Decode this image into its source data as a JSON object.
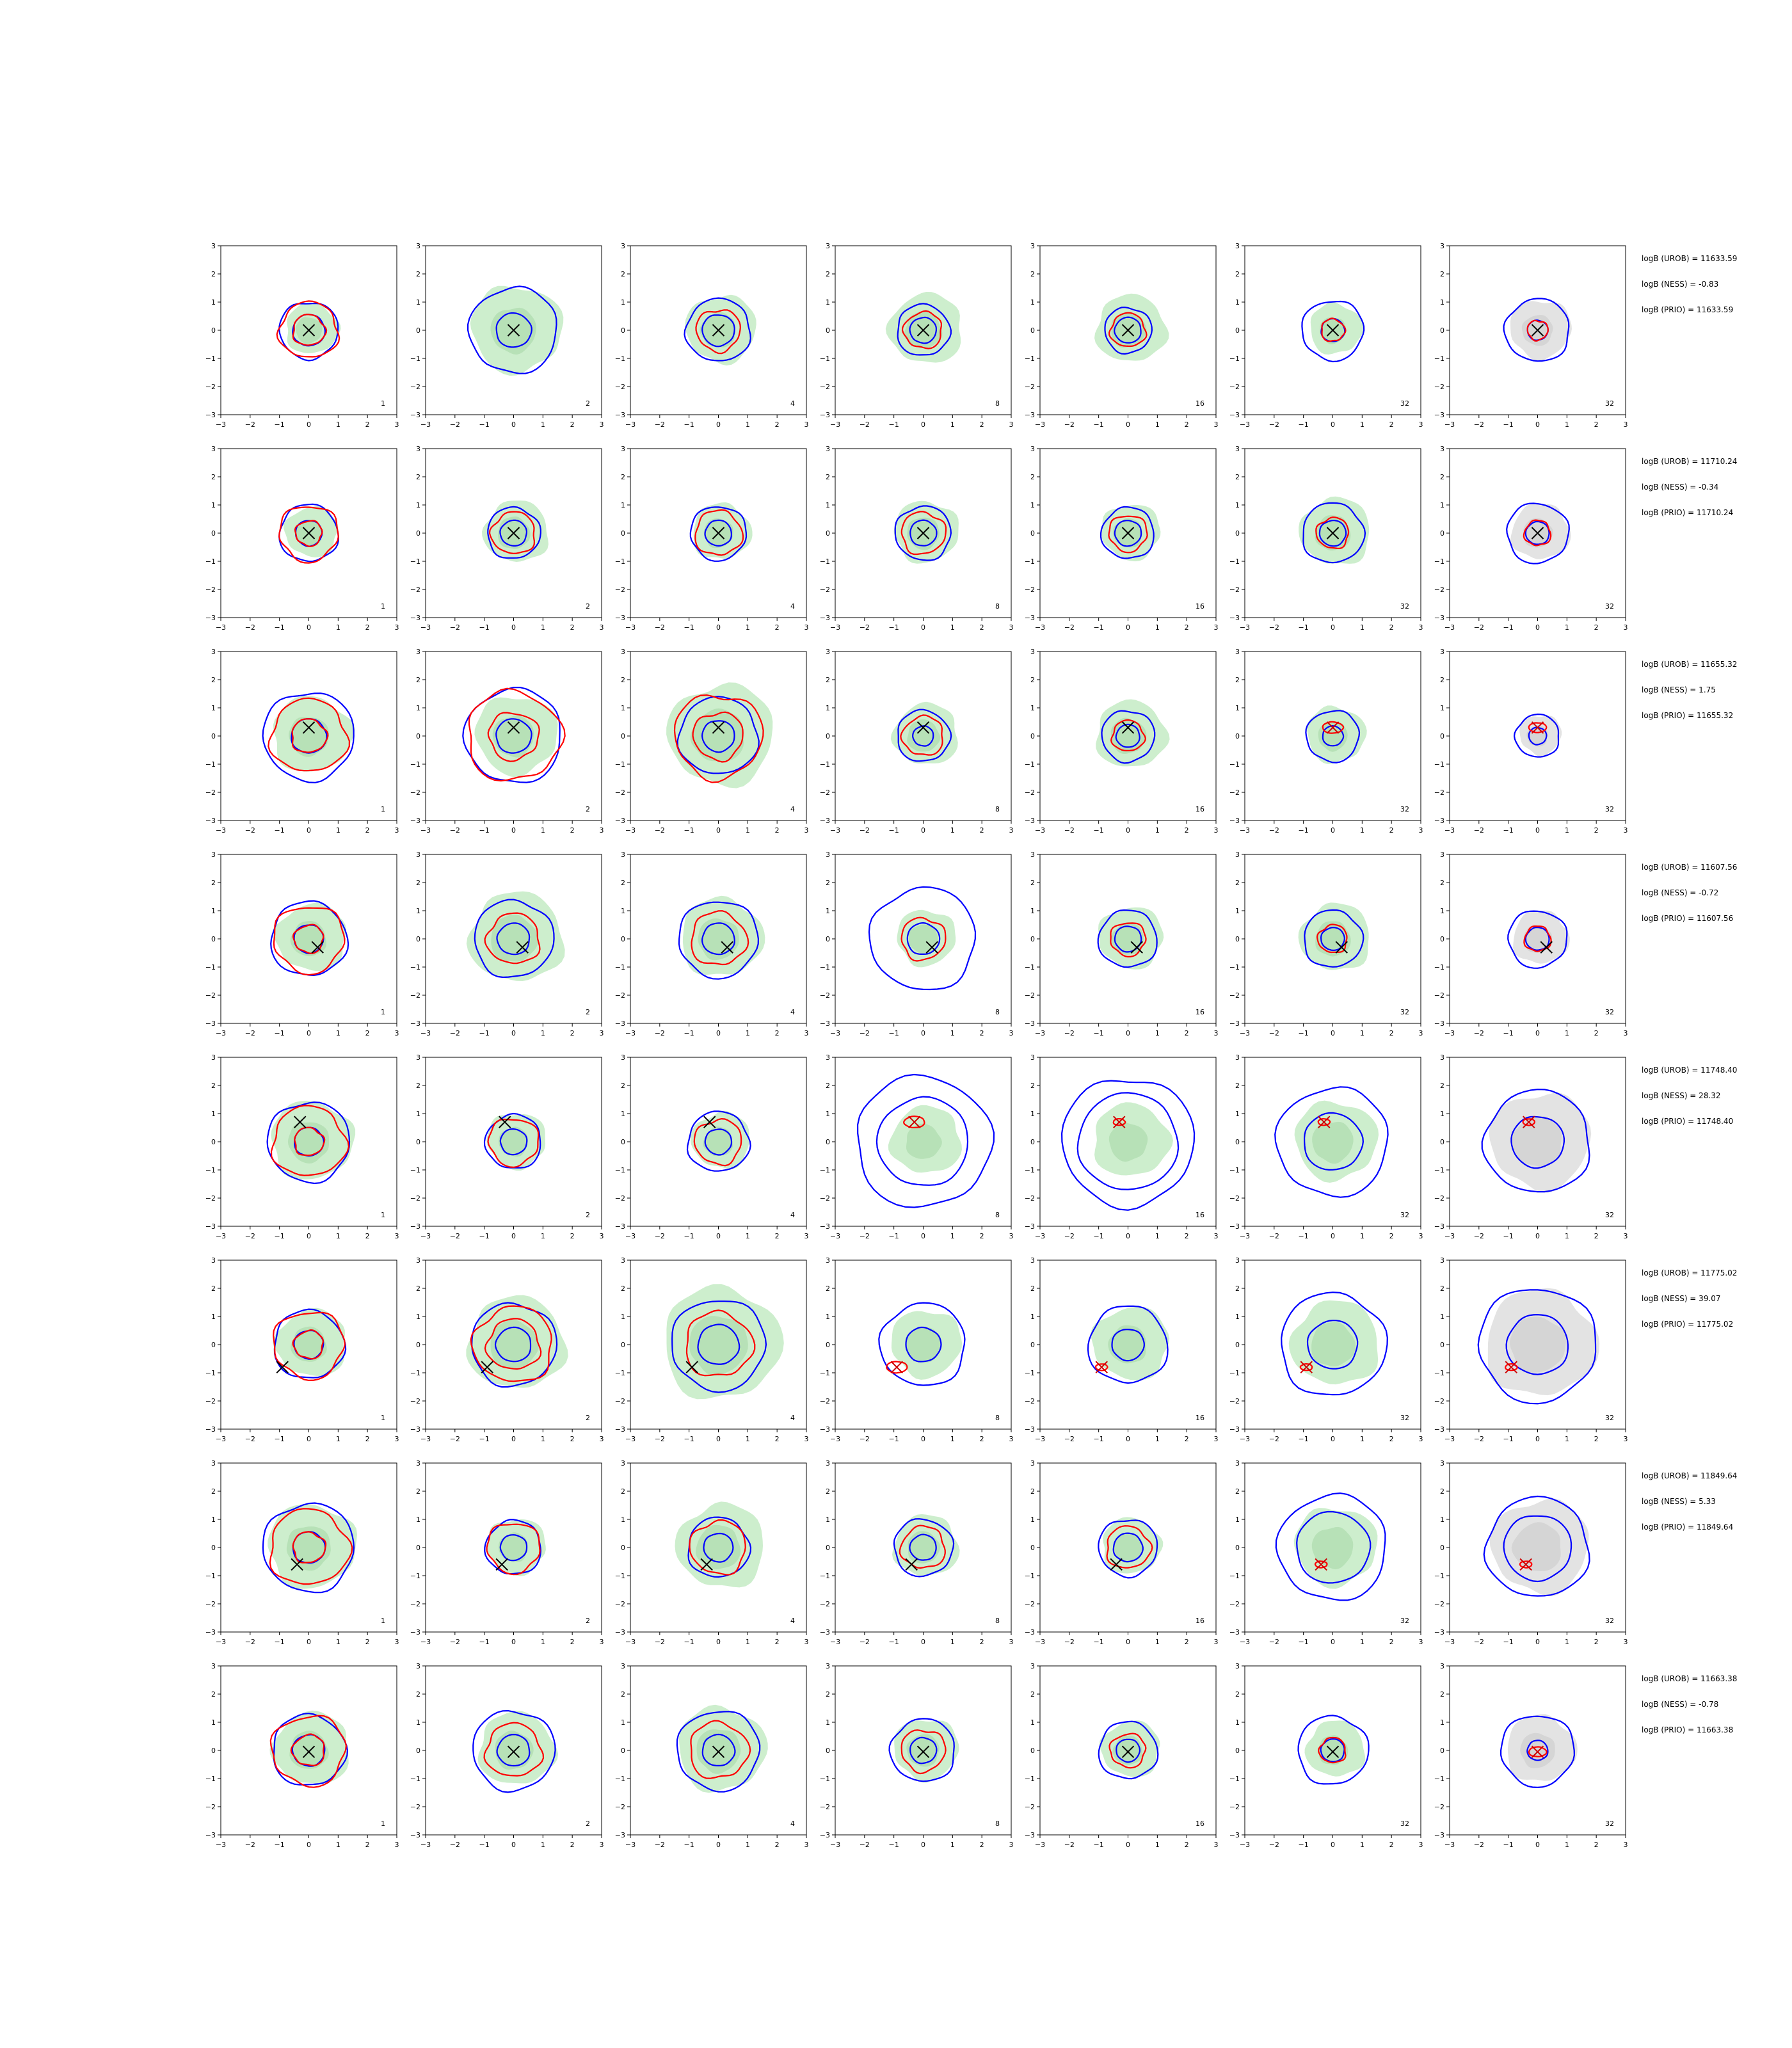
{
  "chart_data": {
    "type": "contour",
    "grid": {
      "rows": 8,
      "cols": 7
    },
    "xlim": [
      -3,
      3
    ],
    "ylim": [
      -3,
      3
    ],
    "xticks": [
      "−3",
      "−2",
      "−1",
      "0",
      "1",
      "2",
      "3"
    ],
    "yticks": [
      "−3",
      "−2",
      "−1",
      "0",
      "1",
      "2",
      "3"
    ],
    "column_labels": [
      "1",
      "2",
      "4",
      "8",
      "16",
      "32",
      "32"
    ],
    "colors": {
      "fill_green": "#cdeecd",
      "fill_green_inner": "#a9d9a9",
      "fill_grey": "#e3e3e3",
      "fill_grey_inner": "#cccccc",
      "blue": "#0000ff",
      "red": "#ff0000",
      "marker": "#000000",
      "marker_red": "#cc0000"
    },
    "rows": [
      {
        "annotations": [
          "logB (UROB) = 11633.59",
          "logB (NESS) = -0.83",
          "logB (PRIO) = 11633.59"
        ],
        "marker": [
          0.0,
          0.0
        ],
        "panels": [
          {
            "blue": [
              0.55,
              1.0
            ],
            "red": [
              0.55,
              1.0
            ],
            "green": 0.9
          },
          {
            "blue": [
              0.6,
              1.5
            ],
            "red": [],
            "green": 1.55
          },
          {
            "blue": [
              0.55,
              1.1
            ],
            "red": [
              0.75
            ],
            "green": 1.2
          },
          {
            "blue": [
              0.45,
              0.9
            ],
            "red": [
              0.65
            ],
            "green": 1.25
          },
          {
            "blue": [
              0.45,
              0.8
            ],
            "red": [
              0.6
            ],
            "green": 1.2
          },
          {
            "blue": [
              0.4,
              1.05
            ],
            "red": [
              0.4
            ],
            "green": 0.9
          },
          {
            "blue": [
              0.35,
              1.1
            ],
            "red": [
              0.35
            ],
            "green": 0.0
          }
        ]
      },
      {
        "annotations": [
          "logB (UROB) = 11710.24",
          "logB (NESS) = -0.34",
          "logB (PRIO) = 11710.24"
        ],
        "marker": [
          0.0,
          0.0
        ],
        "panels": [
          {
            "blue": [
              0.45,
              1.0
            ],
            "red": [
              0.45,
              1.0
            ],
            "green": 0.9
          },
          {
            "blue": [
              0.45,
              0.9
            ],
            "red": [
              0.75
            ],
            "green": 1.1
          },
          {
            "blue": [
              0.45,
              0.95
            ],
            "red": [
              0.8
            ],
            "green": 1.0
          },
          {
            "blue": [
              0.45,
              0.95
            ],
            "red": [
              0.75
            ],
            "green": 1.1
          },
          {
            "blue": [
              0.45,
              0.9
            ],
            "red": [
              0.65
            ],
            "green": 1.0
          },
          {
            "blue": [
              0.45,
              1.05
            ],
            "red": [
              0.55
            ],
            "green": 1.2
          },
          {
            "blue": [
              0.4,
              1.05
            ],
            "red": [
              0.45
            ],
            "green": 0.0
          }
        ]
      },
      {
        "annotations": [
          "logB (UROB) = 11655.32",
          "logB (NESS) = 1.75",
          "logB (PRIO) = 11655.32"
        ],
        "marker": [
          0.0,
          0.3
        ],
        "panels": [
          {
            "blue": [
              0.6,
              1.55
            ],
            "red": [
              0.6,
              1.3
            ],
            "green": 1.35
          },
          {
            "blue": [
              0.6,
              1.65
            ],
            "red": [
              0.85,
              1.6
            ],
            "green": 1.4
          },
          {
            "blue": [
              0.55,
              1.35
            ],
            "red": [
              0.85,
              1.5
            ],
            "green": 1.8
          },
          {
            "blue": [
              0.35,
              0.9
            ],
            "red": [
              0.7
            ],
            "green": 1.1
          },
          {
            "blue": [
              0.4,
              0.9
            ],
            "red": [
              0.55
            ],
            "green": 1.2
          },
          {
            "blue": [
              0.35,
              0.9
            ],
            "red": [
              0.35
            ],
            "green": 1.0
          },
          {
            "blue": [
              0.3,
              0.75
            ],
            "red": [
              0.3
            ],
            "green": 0.0
          }
        ]
      },
      {
        "annotations": [
          "logB (UROB) = 11607.56",
          "logB (NESS) = -0.72",
          "logB (PRIO) = 11607.56"
        ],
        "marker": [
          0.3,
          -0.3
        ],
        "panels": [
          {
            "blue": [
              0.5,
              1.3
            ],
            "red": [
              0.5,
              1.2
            ],
            "green": 1.2
          },
          {
            "blue": [
              0.55,
              1.35
            ],
            "red": [
              0.9
            ],
            "green": 1.6
          },
          {
            "blue": [
              0.55,
              1.35
            ],
            "red": [
              0.95
            ],
            "green": 1.4
          },
          {
            "blue": [
              0.55,
              1.8
            ],
            "red": [
              0.75
            ],
            "green": 1.0
          },
          {
            "blue": [
              0.45,
              1.0
            ],
            "red": [
              0.6
            ],
            "green": 1.1
          },
          {
            "blue": [
              0.4,
              1.0
            ],
            "red": [
              0.5
            ],
            "green": 1.2
          },
          {
            "blue": [
              0.4,
              1.0
            ],
            "red": [
              0.45
            ],
            "green": 0.0
          }
        ]
      },
      {
        "annotations": [
          "logB (UROB) = 11748.40",
          "logB (NESS) = 28.32",
          "logB (PRIO) = 11748.40"
        ],
        "marker": [
          -0.3,
          0.7
        ],
        "panels": [
          {
            "blue": [
              0.5,
              1.4
            ],
            "red": [
              0.5,
              1.25
            ],
            "green": 1.4
          },
          {
            "blue": [
              0.45,
              0.95
            ],
            "red": [
              0.85
            ],
            "green": 1.0
          },
          {
            "blue": [
              0.45,
              1.05
            ],
            "red": [
              0.8
            ],
            "green": 1.0
          },
          {
            "blue": [
              1.55,
              2.3
            ],
            "red": [
              0.35
            ],
            "green": 1.2
          },
          {
            "blue": [
              1.7,
              2.25
            ],
            "red": [
              0.2
            ],
            "green": 1.3
          },
          {
            "blue": [
              1.0,
              1.9
            ],
            "red": [
              0.2
            ],
            "green": 1.4
          },
          {
            "blue": [
              0.9,
              1.8
            ],
            "red": [
              0.2
            ],
            "green": 0.0
          }
        ]
      },
      {
        "annotations": [
          "logB (UROB) = 11775.02",
          "logB (NESS) = 39.07",
          "logB (PRIO) = 11775.02"
        ],
        "marker": [
          -0.9,
          -0.8
        ],
        "panels": [
          {
            "blue": [
              0.5,
              1.2
            ],
            "red": [
              0.5,
              1.2
            ],
            "green": 1.2
          },
          {
            "blue": [
              0.6,
              1.45
            ],
            "red": [
              0.9,
              1.35
            ],
            "green": 1.65
          },
          {
            "blue": [
              0.7,
              1.6
            ],
            "red": [
              1.15
            ],
            "green": 2.0
          },
          {
            "blue": [
              0.6,
              1.45
            ],
            "red": [
              0.35
            ],
            "green": 1.2
          },
          {
            "blue": [
              0.55,
              1.35
            ],
            "red": [
              0.2
            ],
            "green": 1.3
          },
          {
            "blue": [
              0.85,
              1.8
            ],
            "red": [
              0.2
            ],
            "green": 1.5
          },
          {
            "blue": [
              1.05,
              2.0
            ],
            "red": [
              0.2
            ],
            "green": 0.0
          }
        ]
      },
      {
        "annotations": [
          "logB (UROB) = 11849.64",
          "logB (NESS) = 5.33",
          "logB (PRIO) = 11849.64"
        ],
        "marker": [
          -0.4,
          -0.6
        ],
        "panels": [
          {
            "blue": [
              0.55,
              1.55
            ],
            "red": [
              0.55,
              1.35
            ],
            "green": 1.5
          },
          {
            "blue": [
              0.45,
              0.95
            ],
            "red": [
              0.9
            ],
            "green": 1.0
          },
          {
            "blue": [
              0.5,
              1.05
            ],
            "red": [
              0.95
            ],
            "green": 1.5
          },
          {
            "blue": [
              0.45,
              1.0
            ],
            "red": [
              0.75
            ],
            "green": 1.1
          },
          {
            "blue": [
              0.5,
              1.0
            ],
            "red": [
              0.75
            ],
            "green": 1.0
          },
          {
            "blue": [
              1.25,
              1.85
            ],
            "red": [
              0.2
            ],
            "green": 1.4
          },
          {
            "blue": [
              1.15,
              1.75
            ],
            "red": [
              0.2
            ],
            "green": 0.0
          }
        ]
      },
      {
        "annotations": [
          "logB (UROB) = 11663.38",
          "logB (NESS) = -0.78",
          "logB (PRIO) = 11663.38"
        ],
        "marker": [
          0.0,
          -0.05
        ],
        "panels": [
          {
            "blue": [
              0.55,
              1.25
            ],
            "red": [
              0.55,
              1.25
            ],
            "green": 1.3
          },
          {
            "blue": [
              0.55,
              1.4
            ],
            "red": [
              0.95
            ],
            "green": 1.3
          },
          {
            "blue": [
              0.55,
              1.4
            ],
            "red": [
              1.0
            ],
            "green": 1.5
          },
          {
            "blue": [
              0.45,
              1.1
            ],
            "red": [
              0.75
            ],
            "green": 1.1
          },
          {
            "blue": [
              0.4,
              1.0
            ],
            "red": [
              0.6
            ],
            "green": 1.0
          },
          {
            "blue": [
              0.4,
              1.2
            ],
            "red": [
              0.45
            ],
            "green": 1.0
          },
          {
            "blue": [
              0.35,
              1.25
            ],
            "red": [
              0.3
            ],
            "green": 0.0
          }
        ]
      }
    ]
  }
}
